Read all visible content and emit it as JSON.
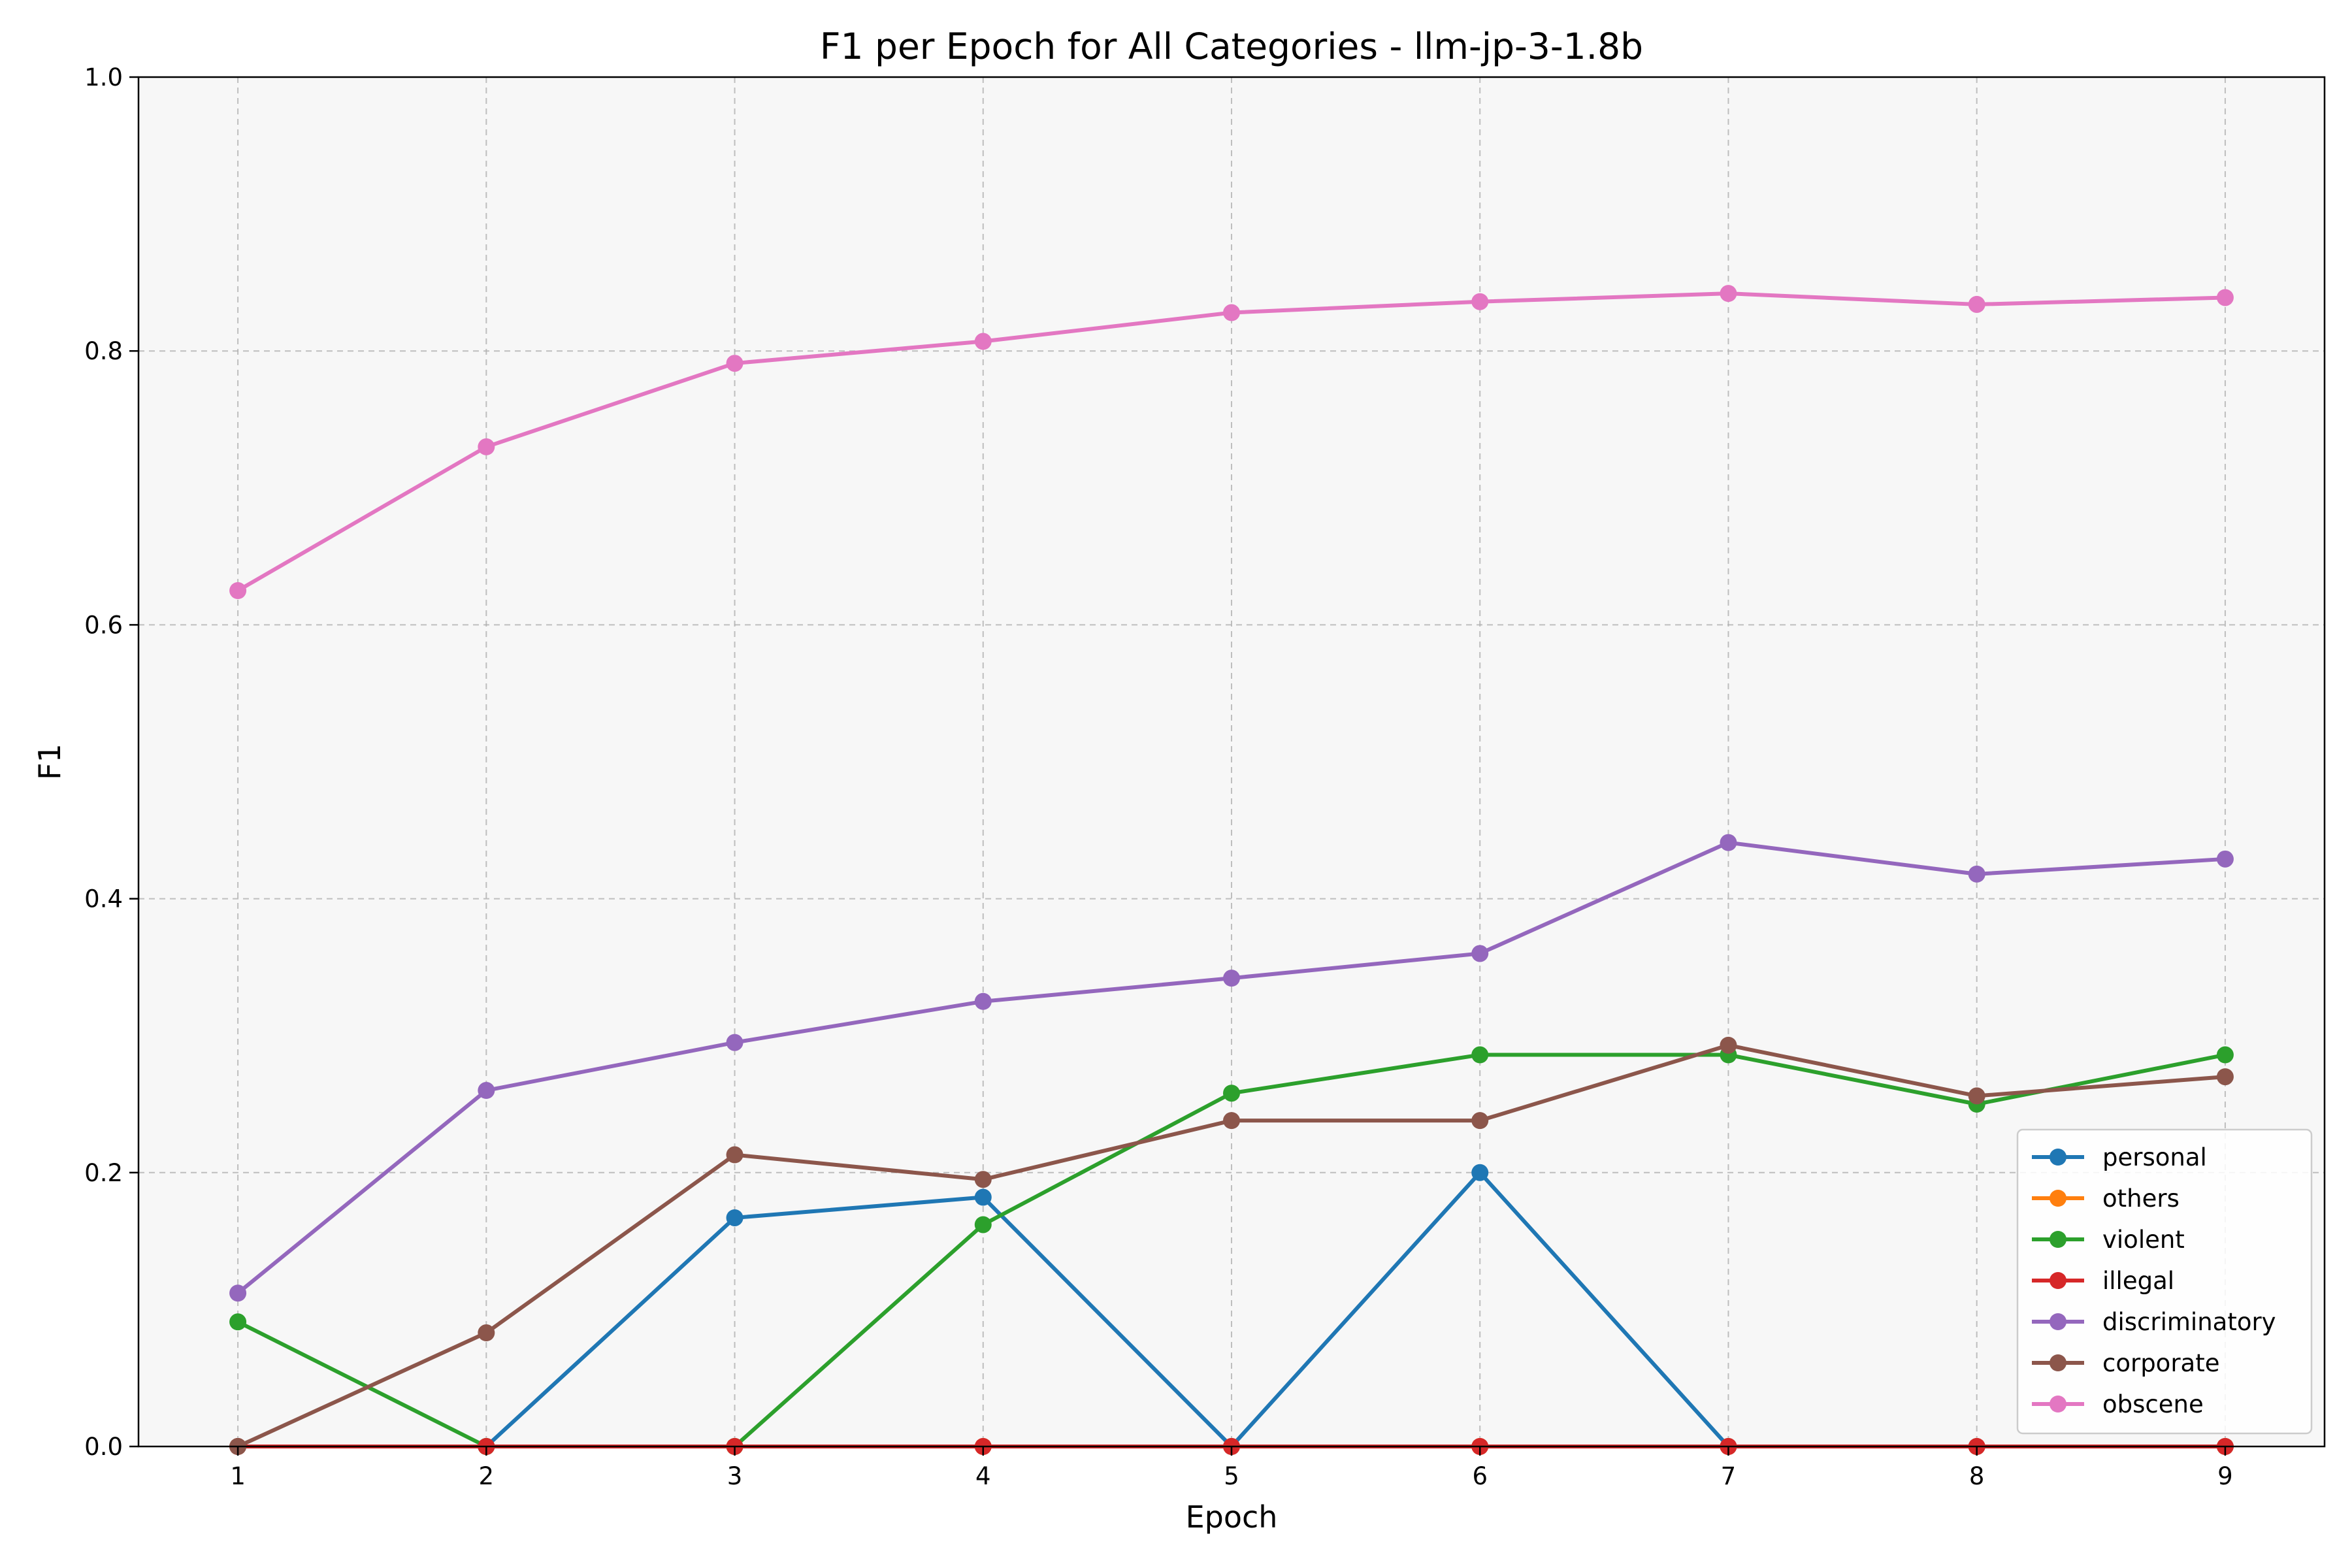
{
  "chart_data": {
    "type": "line",
    "title": "F1 per Epoch for All Categories - llm-jp-3-1.8b",
    "xlabel": "Epoch",
    "ylabel": "F1",
    "x": [
      1,
      2,
      3,
      4,
      5,
      6,
      7,
      8,
      9
    ],
    "xlim": [
      0.6,
      9.4
    ],
    "ylim": [
      0.0,
      1.0
    ],
    "xticks": [
      "1",
      "2",
      "3",
      "4",
      "5",
      "6",
      "7",
      "8",
      "9"
    ],
    "yticks": [
      "0.0",
      "0.2",
      "0.4",
      "0.6",
      "0.8",
      "1.0"
    ],
    "grid": true,
    "legend_position": "lower-right",
    "series": [
      {
        "name": "personal",
        "color": "#1f77b4",
        "values": [
          0,
          0,
          0.167,
          0.182,
          0,
          0.2,
          0,
          0,
          0
        ]
      },
      {
        "name": "others",
        "color": "#ff7f0e",
        "values": [
          0,
          0,
          0,
          0,
          0,
          0,
          0,
          0,
          0
        ]
      },
      {
        "name": "violent",
        "color": "#2ca02c",
        "values": [
          0.091,
          0,
          0,
          0.162,
          0.258,
          0.286,
          0.286,
          0.25,
          0.286
        ]
      },
      {
        "name": "illegal",
        "color": "#d62728",
        "values": [
          0,
          0,
          0,
          0,
          0,
          0,
          0,
          0,
          0
        ]
      },
      {
        "name": "discriminatory",
        "color": "#9467bd",
        "values": [
          0.112,
          0.26,
          0.295,
          0.325,
          0.342,
          0.36,
          0.441,
          0.418,
          0.429
        ]
      },
      {
        "name": "corporate",
        "color": "#8c564b",
        "values": [
          0,
          0.083,
          0.213,
          0.195,
          0.238,
          0.238,
          0.293,
          0.256,
          0.27
        ]
      },
      {
        "name": "obscene",
        "color": "#e377c2",
        "values": [
          0.625,
          0.73,
          0.791,
          0.807,
          0.828,
          0.836,
          0.842,
          0.834,
          0.839
        ]
      }
    ]
  }
}
